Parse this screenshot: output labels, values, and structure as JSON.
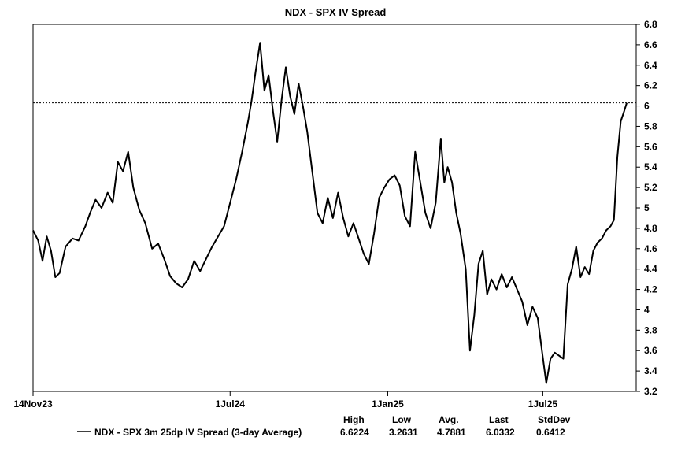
{
  "chart_data": {
    "type": "line",
    "title": "NDX - SPX IV Spread",
    "xlabel": "",
    "ylabel": "",
    "ylim": [
      3.2,
      6.8
    ],
    "y_ticks": [
      "3.2",
      "3.4",
      "3.6",
      "3.8",
      "4",
      "4.2",
      "4.4",
      "4.6",
      "4.8",
      "5",
      "5.2",
      "5.4",
      "5.6",
      "5.8",
      "6",
      "6.2",
      "6.4",
      "6.6",
      "6.8"
    ],
    "x_ticks": [
      {
        "label": "14Nov23",
        "date": "2023-11-14"
      },
      {
        "label": "1Jul24",
        "date": "2024-07-01"
      },
      {
        "label": "1Jan25",
        "date": "2025-01-01"
      },
      {
        "label": "1Jul25",
        "date": "2025-07-01"
      }
    ],
    "reference_line": {
      "value": 6.03,
      "style": "dotted"
    },
    "grid": false,
    "series": [
      {
        "name": "NDX - SPX 3m 25dp IV Spread (3-day Average)",
        "color": "#000000",
        "points": [
          [
            "2023-11-14",
            4.78
          ],
          [
            "2023-11-20",
            4.68
          ],
          [
            "2023-11-25",
            4.48
          ],
          [
            "2023-11-30",
            4.72
          ],
          [
            "2023-12-05",
            4.58
          ],
          [
            "2023-12-10",
            4.32
          ],
          [
            "2023-12-15",
            4.36
          ],
          [
            "2023-12-22",
            4.62
          ],
          [
            "2023-12-30",
            4.7
          ],
          [
            "2024-01-06",
            4.68
          ],
          [
            "2024-01-14",
            4.82
          ],
          [
            "2024-01-20",
            4.96
          ],
          [
            "2024-01-26",
            5.08
          ],
          [
            "2024-02-02",
            5.0
          ],
          [
            "2024-02-09",
            5.15
          ],
          [
            "2024-02-15",
            5.05
          ],
          [
            "2024-02-21",
            5.45
          ],
          [
            "2024-02-27",
            5.36
          ],
          [
            "2024-03-04",
            5.55
          ],
          [
            "2024-03-10",
            5.2
          ],
          [
            "2024-03-17",
            4.98
          ],
          [
            "2024-03-24",
            4.85
          ],
          [
            "2024-04-01",
            4.6
          ],
          [
            "2024-04-08",
            4.65
          ],
          [
            "2024-04-15",
            4.5
          ],
          [
            "2024-04-22",
            4.33
          ],
          [
            "2024-04-29",
            4.26
          ],
          [
            "2024-05-06",
            4.22
          ],
          [
            "2024-05-13",
            4.3
          ],
          [
            "2024-05-20",
            4.48
          ],
          [
            "2024-05-27",
            4.38
          ],
          [
            "2024-06-03",
            4.5
          ],
          [
            "2024-06-10",
            4.62
          ],
          [
            "2024-06-17",
            4.72
          ],
          [
            "2024-06-24",
            4.82
          ],
          [
            "2024-07-01",
            5.05
          ],
          [
            "2024-07-08",
            5.28
          ],
          [
            "2024-07-15",
            5.55
          ],
          [
            "2024-07-22",
            5.85
          ],
          [
            "2024-07-26",
            6.05
          ],
          [
            "2024-07-31",
            6.35
          ],
          [
            "2024-08-05",
            6.62
          ],
          [
            "2024-08-10",
            6.15
          ],
          [
            "2024-08-15",
            6.3
          ],
          [
            "2024-08-20",
            5.95
          ],
          [
            "2024-08-25",
            5.65
          ],
          [
            "2024-08-30",
            6.05
          ],
          [
            "2024-09-04",
            6.38
          ],
          [
            "2024-09-09",
            6.1
          ],
          [
            "2024-09-14",
            5.92
          ],
          [
            "2024-09-19",
            6.22
          ],
          [
            "2024-09-24",
            6.0
          ],
          [
            "2024-09-29",
            5.75
          ],
          [
            "2024-10-05",
            5.35
          ],
          [
            "2024-10-11",
            4.95
          ],
          [
            "2024-10-17",
            4.85
          ],
          [
            "2024-10-23",
            5.1
          ],
          [
            "2024-10-29",
            4.9
          ],
          [
            "2024-11-04",
            5.15
          ],
          [
            "2024-11-10",
            4.9
          ],
          [
            "2024-11-16",
            4.72
          ],
          [
            "2024-11-22",
            4.85
          ],
          [
            "2024-11-28",
            4.7
          ],
          [
            "2024-12-04",
            4.55
          ],
          [
            "2024-12-10",
            4.45
          ],
          [
            "2024-12-16",
            4.75
          ],
          [
            "2024-12-22",
            5.1
          ],
          [
            "2024-12-28",
            5.2
          ],
          [
            "2025-01-03",
            5.28
          ],
          [
            "2025-01-09",
            5.32
          ],
          [
            "2025-01-15",
            5.22
          ],
          [
            "2025-01-21",
            4.92
          ],
          [
            "2025-01-27",
            4.82
          ],
          [
            "2025-02-02",
            5.55
          ],
          [
            "2025-02-08",
            5.25
          ],
          [
            "2025-02-14",
            4.95
          ],
          [
            "2025-02-20",
            4.8
          ],
          [
            "2025-02-26",
            5.05
          ],
          [
            "2025-03-04",
            5.68
          ],
          [
            "2025-03-08",
            5.25
          ],
          [
            "2025-03-12",
            5.4
          ],
          [
            "2025-03-17",
            5.25
          ],
          [
            "2025-03-22",
            4.95
          ],
          [
            "2025-03-27",
            4.75
          ],
          [
            "2025-04-02",
            4.4
          ],
          [
            "2025-04-07",
            3.6
          ],
          [
            "2025-04-12",
            3.95
          ],
          [
            "2025-04-17",
            4.45
          ],
          [
            "2025-04-22",
            4.58
          ],
          [
            "2025-04-27",
            4.15
          ],
          [
            "2025-05-02",
            4.3
          ],
          [
            "2025-05-08",
            4.2
          ],
          [
            "2025-05-14",
            4.35
          ],
          [
            "2025-05-20",
            4.22
          ],
          [
            "2025-05-26",
            4.32
          ],
          [
            "2025-06-01",
            4.2
          ],
          [
            "2025-06-07",
            4.08
          ],
          [
            "2025-06-13",
            3.85
          ],
          [
            "2025-06-19",
            4.03
          ],
          [
            "2025-06-25",
            3.92
          ],
          [
            "2025-06-30",
            3.6
          ],
          [
            "2025-07-05",
            3.28
          ],
          [
            "2025-07-10",
            3.52
          ],
          [
            "2025-07-15",
            3.58
          ],
          [
            "2025-07-20",
            3.55
          ],
          [
            "2025-07-25",
            3.52
          ],
          [
            "2025-07-30",
            4.25
          ],
          [
            "2025-08-04",
            4.4
          ],
          [
            "2025-08-09",
            4.62
          ],
          [
            "2025-08-14",
            4.32
          ],
          [
            "2025-08-19",
            4.42
          ],
          [
            "2025-08-24",
            4.35
          ],
          [
            "2025-08-29",
            4.58
          ],
          [
            "2025-09-03",
            4.66
          ],
          [
            "2025-09-08",
            4.7
          ],
          [
            "2025-09-13",
            4.78
          ],
          [
            "2025-09-18",
            4.82
          ],
          [
            "2025-09-22",
            4.88
          ],
          [
            "2025-09-26",
            5.5
          ],
          [
            "2025-09-30",
            5.85
          ],
          [
            "2025-10-04",
            5.95
          ],
          [
            "2025-10-07",
            6.03
          ]
        ]
      }
    ],
    "legend": {
      "placement": "bottom",
      "headers": [
        "High",
        "Low",
        "Avg.",
        "Last",
        "StdDev"
      ],
      "label": "NDX - SPX 3m 25dp IV Spread (3-day Average)",
      "stats": [
        "6.6224",
        "3.2631",
        "4.7881",
        "6.0332",
        "0.6412"
      ]
    }
  }
}
